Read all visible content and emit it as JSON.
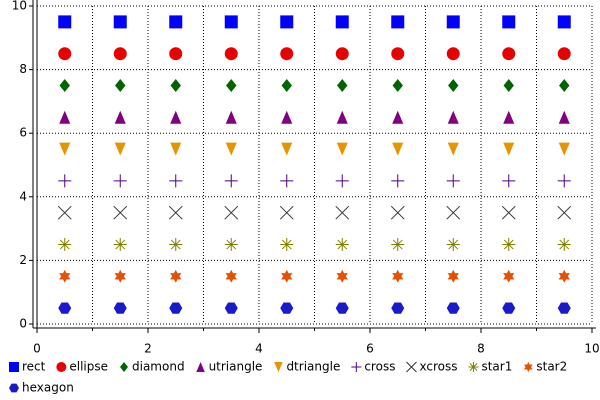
{
  "chart_data": {
    "type": "scatter",
    "x": [
      0.5,
      1.5,
      2.5,
      3.5,
      4.5,
      5.5,
      6.5,
      7.5,
      8.5,
      9.5
    ],
    "series": [
      {
        "name": "rect",
        "color": "#0000ff",
        "values": [
          9.5,
          9.5,
          9.5,
          9.5,
          9.5,
          9.5,
          9.5,
          9.5,
          9.5,
          9.5
        ]
      },
      {
        "name": "ellipse",
        "color": "#e60000",
        "values": [
          8.5,
          8.5,
          8.5,
          8.5,
          8.5,
          8.5,
          8.5,
          8.5,
          8.5,
          8.5
        ]
      },
      {
        "name": "diamond",
        "color": "#006400",
        "values": [
          7.5,
          7.5,
          7.5,
          7.5,
          7.5,
          7.5,
          7.5,
          7.5,
          7.5,
          7.5
        ]
      },
      {
        "name": "utriangle",
        "color": "#800080",
        "values": [
          6.5,
          6.5,
          6.5,
          6.5,
          6.5,
          6.5,
          6.5,
          6.5,
          6.5,
          6.5
        ]
      },
      {
        "name": "dtriangle",
        "color": "#e69500",
        "values": [
          5.5,
          5.5,
          5.5,
          5.5,
          5.5,
          5.5,
          5.5,
          5.5,
          5.5,
          5.5
        ]
      },
      {
        "name": "cross",
        "color": "#4b0082",
        "values": [
          4.5,
          4.5,
          4.5,
          4.5,
          4.5,
          4.5,
          4.5,
          4.5,
          4.5,
          4.5
        ]
      },
      {
        "name": "xcross",
        "color": "#333333",
        "values": [
          3.5,
          3.5,
          3.5,
          3.5,
          3.5,
          3.5,
          3.5,
          3.5,
          3.5,
          3.5
        ]
      },
      {
        "name": "star1",
        "color": "#808000",
        "values": [
          2.5,
          2.5,
          2.5,
          2.5,
          2.5,
          2.5,
          2.5,
          2.5,
          2.5,
          2.5
        ]
      },
      {
        "name": "star2",
        "color": "#e65000",
        "values": [
          1.5,
          1.5,
          1.5,
          1.5,
          1.5,
          1.5,
          1.5,
          1.5,
          1.5,
          1.5
        ]
      },
      {
        "name": "hexagon",
        "color": "#1a1acd",
        "values": [
          0.5,
          0.5,
          0.5,
          0.5,
          0.5,
          0.5,
          0.5,
          0.5,
          0.5,
          0.5
        ]
      }
    ],
    "xlim": [
      0,
      10
    ],
    "xticks": [
      0,
      2,
      4,
      6,
      8,
      10
    ],
    "xminorticks": [
      1,
      3,
      5,
      7,
      9
    ],
    "ylim": [
      0,
      10
    ],
    "yticks": [
      0,
      2,
      4,
      6,
      8,
      10
    ],
    "grid": true,
    "legend": "bottom"
  }
}
